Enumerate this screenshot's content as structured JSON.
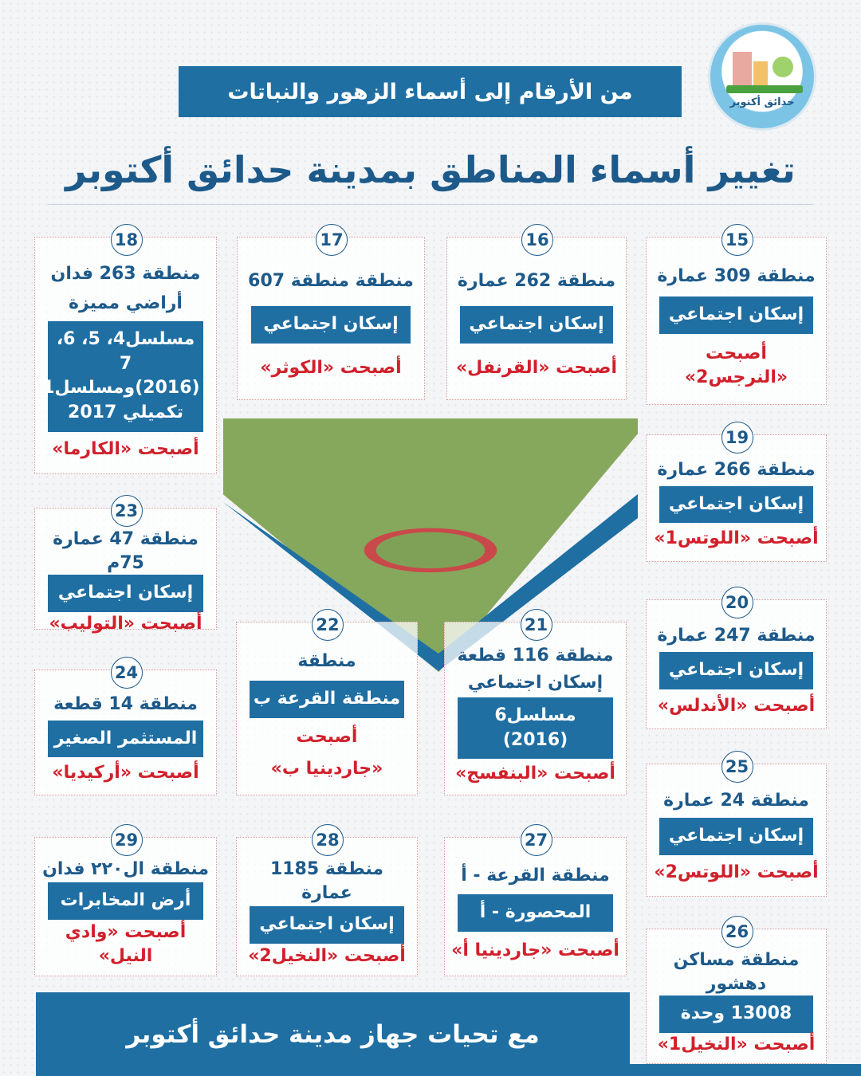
{
  "logo": {
    "text": "حدائق أكتوبر"
  },
  "header": {
    "subtitle": "من الأرقام إلى أسماء الزهور والنباتات",
    "title": "تغيير أسماء المناطق بمدينة حدائق أكتوبر"
  },
  "colors": {
    "primary": "#1f6fa3",
    "title": "#1d5a8a",
    "accent": "#d1202b"
  },
  "cards": [
    {
      "number": "15",
      "lines": [
        {
          "k": "t",
          "text": "منطقة 309 عمارة"
        },
        {
          "k": "b",
          "text": "إسكان اجتماعي"
        },
        {
          "k": "r",
          "text": "أصبحت «النرجس2»"
        }
      ]
    },
    {
      "number": "16",
      "lines": [
        {
          "k": "t",
          "text": "منطقة 262 عمارة"
        },
        {
          "k": "b",
          "text": "إسكان اجتماعي"
        },
        {
          "k": "r",
          "text": "أصبحت «القرنفل»"
        }
      ]
    },
    {
      "number": "17",
      "lines": [
        {
          "k": "t",
          "text": "منطقة منطقة 607"
        },
        {
          "k": "b",
          "text": "إسكان اجتماعي"
        },
        {
          "k": "r",
          "text": "أصبحت «الكوثر»"
        }
      ]
    },
    {
      "number": "18",
      "lines": [
        {
          "k": "t",
          "text": "منطقة 263 فدان"
        },
        {
          "k": "t",
          "text": "أراضي مميزة"
        },
        {
          "k": "b",
          "text": "مسلسل4، 5، 6، 7 (2016)ومسلسل1 تكميلي 2017"
        },
        {
          "k": "r",
          "text": "أصبحت «الكارما»"
        }
      ]
    },
    {
      "number": "19",
      "lines": [
        {
          "k": "t",
          "text": "منطقة 266 عمارة"
        },
        {
          "k": "b",
          "text": "إسكان اجتماعي"
        },
        {
          "k": "r",
          "text": "أصبحت «اللوتس1»"
        }
      ]
    },
    {
      "number": "20",
      "lines": [
        {
          "k": "t",
          "text": "منطقة 247 عمارة"
        },
        {
          "k": "b",
          "text": "إسكان اجتماعي"
        },
        {
          "k": "r",
          "text": "أصبحت «الأندلس»"
        }
      ]
    },
    {
      "number": "21",
      "lines": [
        {
          "k": "t",
          "text": "منطقة 116 قطعة"
        },
        {
          "k": "t",
          "text": "إسكان اجتماعي"
        },
        {
          "k": "b",
          "text": "مسلسل6 (2016)"
        },
        {
          "k": "r",
          "text": "أصبحت «البنفسج»"
        }
      ]
    },
    {
      "number": "22",
      "lines": [
        {
          "k": "t",
          "text": "منطقة"
        },
        {
          "k": "b",
          "text": "منطقة القرعة ب"
        },
        {
          "k": "r",
          "text": "أصبحت"
        },
        {
          "k": "r",
          "text": "«جاردينيا ب»"
        }
      ]
    },
    {
      "number": "23",
      "lines": [
        {
          "k": "t",
          "text": "منطقة 47 عمارة 75م"
        },
        {
          "k": "b",
          "text": "إسكان اجتماعي"
        },
        {
          "k": "r",
          "text": "أصبحت «التوليب»"
        }
      ]
    },
    {
      "number": "24",
      "lines": [
        {
          "k": "t",
          "text": "منطقة 14 قطعة"
        },
        {
          "k": "b",
          "text": "المستثمر الصغير"
        },
        {
          "k": "r",
          "text": "أصبحت «أركيديا»"
        }
      ]
    },
    {
      "number": "25",
      "lines": [
        {
          "k": "t",
          "text": "منطقة 24 عمارة"
        },
        {
          "k": "b",
          "text": "إسكان اجتماعي"
        },
        {
          "k": "r",
          "text": "أصبحت «اللوتس2»"
        }
      ]
    },
    {
      "number": "26",
      "lines": [
        {
          "k": "t",
          "text": "منطقة مساكن دهشور"
        },
        {
          "k": "b",
          "text": "13008 وحدة"
        },
        {
          "k": "r",
          "text": "أصبحت «النخيل1»"
        }
      ]
    },
    {
      "number": "27",
      "lines": [
        {
          "k": "t",
          "text": "منطقة القرعة - أ"
        },
        {
          "k": "b",
          "text": "المحصورة - أ"
        },
        {
          "k": "r",
          "text": "أصبحت «جاردينيا أ»"
        }
      ]
    },
    {
      "number": "28",
      "lines": [
        {
          "k": "t",
          "text": "منطقة 1185 عمارة"
        },
        {
          "k": "b",
          "text": "إسكان اجتماعي"
        },
        {
          "k": "r",
          "text": "أصبحت «النخيل2»"
        }
      ]
    },
    {
      "number": "29",
      "lines": [
        {
          "k": "t",
          "text": "منطقة ال٢٢٠ فدان"
        },
        {
          "k": "b",
          "text": "أرض المخابرات"
        },
        {
          "k": "r",
          "text": "أصبحت «وادي النيل»"
        }
      ]
    }
  ],
  "footer": {
    "text": "مع تحيات جهاز مدينة حدائق أكتوبر"
  }
}
